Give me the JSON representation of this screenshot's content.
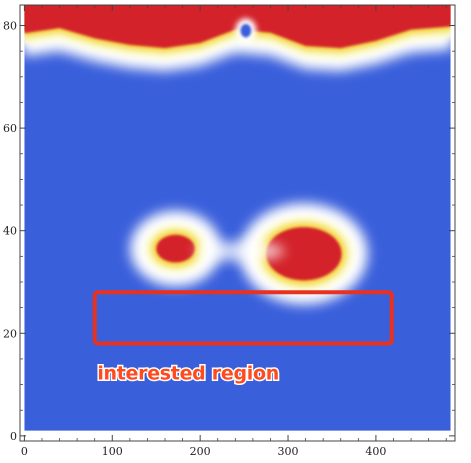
{
  "chart_data": {
    "type": "heatmap",
    "title": "",
    "xlabel": "",
    "ylabel": "",
    "xlim": [
      -5,
      490
    ],
    "ylim": [
      -1,
      84
    ],
    "data_extent": {
      "x": [
        0,
        485
      ],
      "y": [
        1,
        84
      ]
    },
    "x_ticks": [
      0,
      100,
      200,
      300,
      400
    ],
    "y_ticks": [
      0,
      20,
      40,
      60,
      80
    ],
    "x_tick_labels": [
      "0",
      "100",
      "200",
      "300",
      "400"
    ],
    "y_tick_labels": [
      "0",
      "20",
      "40",
      "60",
      "80"
    ],
    "colormap": {
      "low": "#3a5fdb",
      "mid": "#fbfad0",
      "midhigh": "#f5d94a",
      "high": "#d3242c"
    },
    "hotspots": [
      {
        "shape": "ellipse",
        "cx": 172,
        "cy": 36.5,
        "rx": 22,
        "ry": 2.7,
        "level": "high"
      },
      {
        "shape": "ellipse",
        "cx": 318,
        "cy": 35.5,
        "rx": 43,
        "ry": 5.2,
        "level": "high"
      }
    ],
    "top_band": {
      "level": "high",
      "boundary": [
        [
          0,
          78.5
        ],
        [
          40,
          79.5
        ],
        [
          80,
          77.5
        ],
        [
          120,
          76.2
        ],
        [
          160,
          75.6
        ],
        [
          200,
          76.6
        ],
        [
          240,
          79.2
        ],
        [
          280,
          78.6
        ],
        [
          320,
          76.0
        ],
        [
          360,
          75.6
        ],
        [
          400,
          77.0
        ],
        [
          440,
          79.2
        ],
        [
          485,
          79.8
        ]
      ],
      "cold_spots": [
        {
          "cx": 252,
          "cy": 79,
          "rx": 11,
          "ry": 1.0
        }
      ]
    },
    "annotation_box": {
      "x0": 80,
      "x1": 418,
      "y0": 18,
      "y1": 28,
      "color": "#e8321f"
    },
    "annotation_text": "interested region",
    "annotation_anchor": {
      "x": 83,
      "y": 11
    },
    "grid": false,
    "legend": "none"
  }
}
